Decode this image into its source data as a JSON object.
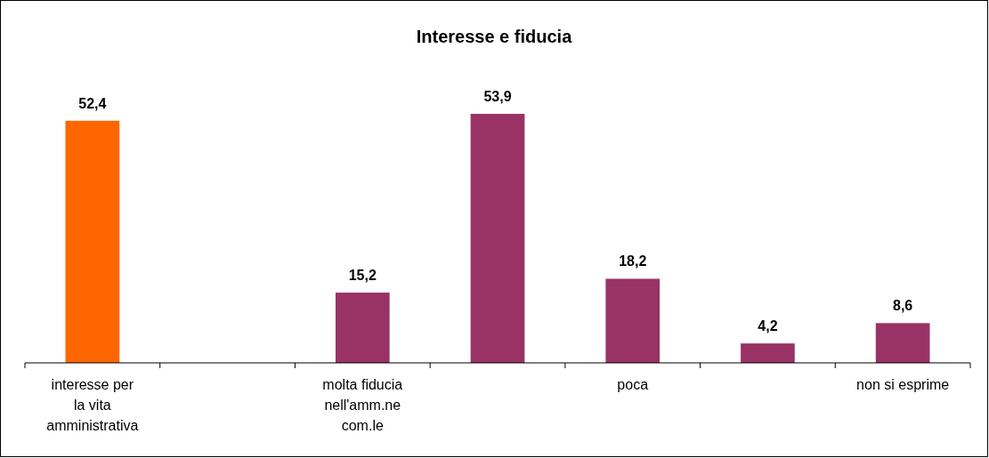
{
  "chart_data": {
    "type": "bar",
    "title": "Interesse e fiducia",
    "categories": [
      "interesse per la vita amministrativa",
      null,
      "molta fiducia nell'amm.ne com.le",
      null,
      "poca",
      null,
      "non si esprime"
    ],
    "values": [
      52.4,
      null,
      15.2,
      53.9,
      18.2,
      4.2,
      8.6
    ],
    "value_labels": [
      "52,4",
      null,
      "15,2",
      "53,9",
      "18,2",
      "4,2",
      "8,6"
    ],
    "colors": [
      "#ff6600",
      null,
      "#993366",
      "#993366",
      "#993366",
      "#993366",
      "#993366"
    ]
  }
}
